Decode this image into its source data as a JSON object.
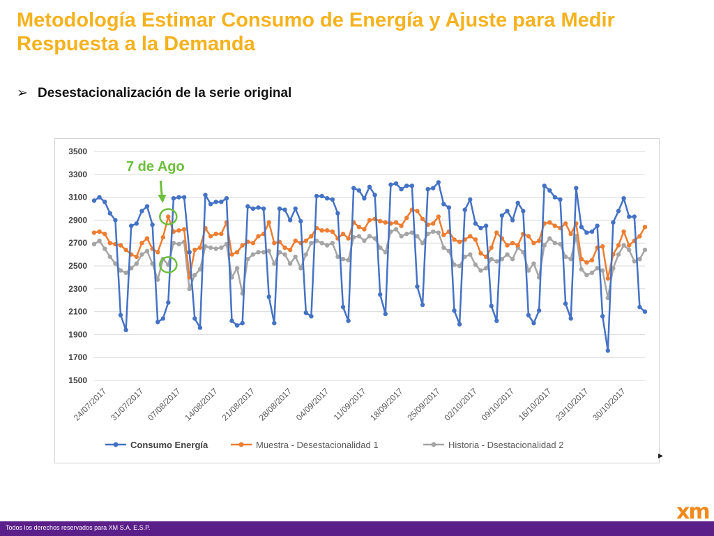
{
  "slide": {
    "title": "Metodología Estimar Consumo de Energía y Ajuste para Medir Respuesta a la Demanda",
    "bullet": "Desestacionalización de la serie original",
    "bullet_glyph": "➢",
    "annotation": "7 de Ago",
    "footer": "Todos los derechos reservados para XM S.A. E.S.P.",
    "logo": "xm",
    "corner_mark": "▸"
  },
  "chart_data": {
    "type": "line",
    "x_labels": [
      "24/07/2017",
      "31/07/2017",
      "07/08/2017",
      "14/08/2017",
      "21/08/2017",
      "28/08/2017",
      "04/09/2017",
      "11/09/2017",
      "18/09/2017",
      "25/09/2017",
      "02/10/2017",
      "09/10/2017",
      "16/10/2017",
      "23/10/2017",
      "30/10/2017"
    ],
    "y_ticks": [
      1500,
      1700,
      1900,
      2100,
      2300,
      2500,
      2700,
      2900,
      3100,
      3300,
      3500
    ],
    "ylim": [
      1500,
      3500
    ],
    "grid": true,
    "legend_position": "bottom",
    "colors": {
      "consumo": "#4472c4",
      "muestra": "#ed7d31",
      "historia": "#a5a5a5",
      "annotation": "#6cbf3c"
    },
    "series": [
      {
        "name": "Consumo Energía",
        "values": [
          3070,
          3100,
          3060,
          2960,
          2900,
          2070,
          1940,
          2850,
          2870,
          2980,
          3020,
          2860,
          2010,
          2040,
          2180,
          3090,
          3100,
          3100,
          2620,
          2040,
          1960,
          3120,
          3040,
          3060,
          3060,
          3090,
          2020,
          1980,
          2000,
          3020,
          3000,
          3010,
          3000,
          2230,
          2000,
          3000,
          2990,
          2900,
          3000,
          2890,
          2090,
          2060,
          3110,
          3110,
          3090,
          3080,
          2960,
          2140,
          2020,
          3180,
          3160,
          3090,
          3190,
          3120,
          2250,
          2080,
          3210,
          3220,
          3170,
          3200,
          3200,
          2320,
          2160,
          3170,
          3180,
          3230,
          3040,
          3010,
          2110,
          1990,
          2990,
          3080,
          2870,
          2830,
          2850,
          2150,
          2020,
          2940,
          2980,
          2900,
          3050,
          2980,
          2070,
          2000,
          2110,
          3200,
          3160,
          3100,
          3080,
          2170,
          2040,
          3180,
          2840,
          2790,
          2800,
          2850,
          2060,
          1760,
          2880,
          2980,
          3090,
          2930,
          2930,
          2140,
          2100
        ]
      },
      {
        "name": "Muestra - Desestacionalidad 1",
        "values": [
          2790,
          2800,
          2780,
          2700,
          2690,
          2680,
          2640,
          2600,
          2580,
          2700,
          2740,
          2650,
          2620,
          2750,
          2930,
          2800,
          2810,
          2820,
          2400,
          2640,
          2660,
          2830,
          2760,
          2780,
          2780,
          2880,
          2600,
          2620,
          2680,
          2710,
          2700,
          2760,
          2780,
          2880,
          2700,
          2710,
          2660,
          2640,
          2720,
          2700,
          2720,
          2760,
          2830,
          2810,
          2810,
          2800,
          2740,
          2780,
          2740,
          2880,
          2840,
          2820,
          2900,
          2910,
          2890,
          2880,
          2870,
          2880,
          2850,
          2920,
          2990,
          2980,
          2910,
          2860,
          2870,
          2930,
          2770,
          2800,
          2730,
          2710,
          2730,
          2760,
          2730,
          2610,
          2580,
          2660,
          2790,
          2740,
          2680,
          2700,
          2680,
          2780,
          2760,
          2700,
          2720,
          2870,
          2880,
          2850,
          2830,
          2870,
          2780,
          2870,
          2560,
          2530,
          2550,
          2660,
          2670,
          2390,
          2600,
          2680,
          2800,
          2680,
          2720,
          2760,
          2840
        ]
      },
      {
        "name": "Historia - Dsestacionalidad 2",
        "values": [
          2690,
          2720,
          2650,
          2580,
          2520,
          2460,
          2440,
          2480,
          2520,
          2600,
          2630,
          2520,
          2380,
          2560,
          2510,
          2700,
          2690,
          2710,
          2300,
          2420,
          2470,
          2670,
          2660,
          2650,
          2660,
          2690,
          2400,
          2480,
          2260,
          2560,
          2600,
          2620,
          2620,
          2630,
          2520,
          2620,
          2600,
          2520,
          2580,
          2480,
          2600,
          2700,
          2720,
          2700,
          2680,
          2700,
          2580,
          2560,
          2550,
          2750,
          2760,
          2720,
          2760,
          2740,
          2660,
          2620,
          2800,
          2820,
          2760,
          2780,
          2790,
          2760,
          2700,
          2780,
          2800,
          2790,
          2660,
          2630,
          2510,
          2500,
          2580,
          2600,
          2510,
          2460,
          2480,
          2560,
          2540,
          2560,
          2600,
          2560,
          2660,
          2620,
          2460,
          2520,
          2400,
          2680,
          2740,
          2700,
          2690,
          2580,
          2560,
          2760,
          2470,
          2420,
          2440,
          2480,
          2460,
          2220,
          2480,
          2600,
          2680,
          2640,
          2540,
          2560,
          2640
        ]
      }
    ]
  }
}
